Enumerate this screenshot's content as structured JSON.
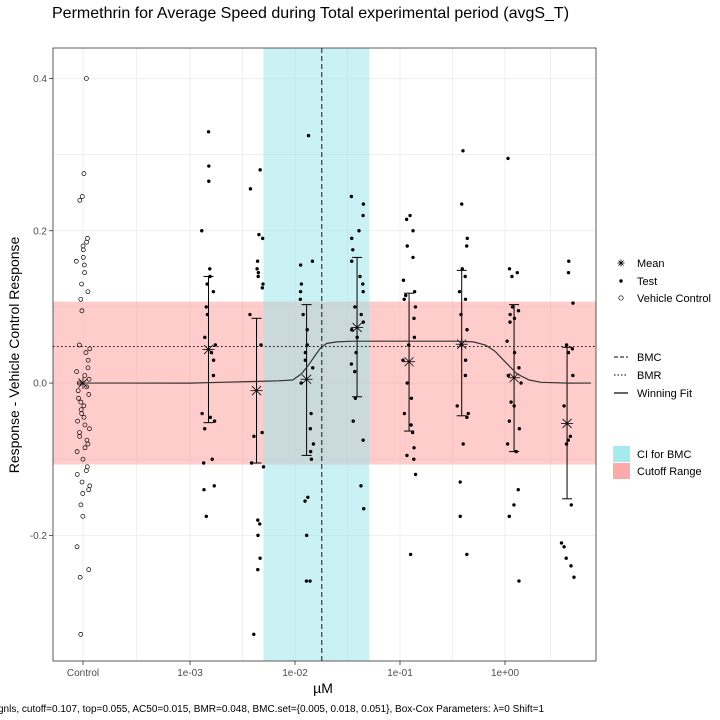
{
  "chart_data": {
    "type": "scatter",
    "title": "Permethrin for Average Speed during Total experimental period (avgS_T)",
    "xlabel": "µM",
    "ylabel": "Response - Vehicle Control Response",
    "caption": "gnls, cutoff=0.107, top=0.055, AC50=0.015, BMR=0.048, BMC.set={0.005, 0.018, 0.051}, Box-Cox Parameters: λ=0 Shift=1",
    "x_scale": "log10",
    "control_label": "Control",
    "x_ticks": [
      {
        "label": "Control",
        "value": null
      },
      {
        "label": "1e-03",
        "value": 0.001
      },
      {
        "label": "1e-02",
        "value": 0.01
      },
      {
        "label": "1e-01",
        "value": 0.1
      },
      {
        "label": "1e+00",
        "value": 1
      }
    ],
    "y_ticks": [
      -0.2,
      0.0,
      0.2,
      0.4
    ],
    "y_tick_labels": [
      "-0.2",
      "0.0",
      "0.2",
      "0.4"
    ],
    "ylim": [
      -0.365,
      0.44
    ],
    "grid": true,
    "cutoff": 0.107,
    "bmr": 0.048,
    "bmc": 0.018,
    "bmc_ci": [
      0.005,
      0.051
    ],
    "top": 0.055,
    "ac50": 0.015,
    "vehicle_control": [
      0.4,
      0.275,
      0.245,
      0.24,
      0.19,
      0.185,
      0.18,
      0.175,
      0.165,
      0.16,
      0.155,
      0.145,
      0.13,
      0.12,
      0.11,
      0.095,
      0.05,
      0.045,
      0.04,
      0.03,
      0.02,
      0.015,
      0.01,
      0.005,
      0.0,
      -0.005,
      -0.01,
      -0.015,
      -0.02,
      -0.025,
      -0.03,
      -0.035,
      -0.04,
      -0.045,
      -0.05,
      -0.055,
      -0.06,
      -0.065,
      -0.07,
      -0.075,
      -0.08,
      -0.085,
      -0.09,
      -0.1,
      -0.11,
      -0.115,
      -0.12,
      -0.13,
      -0.135,
      -0.14,
      -0.145,
      -0.16,
      -0.175,
      -0.215,
      -0.245,
      -0.255,
      -0.33
    ],
    "concentrations": [
      {
        "conc": 0.0015,
        "mean": 0.044,
        "err_low": -0.052,
        "err_high": 0.14,
        "points": [
          0.33,
          0.285,
          0.265,
          0.2,
          0.15,
          0.14,
          0.13,
          0.12,
          0.1,
          0.09,
          0.06,
          0.05,
          0.04,
          0.03,
          0.01,
          -0.04,
          -0.045,
          -0.05,
          -0.06,
          -0.1,
          -0.105,
          -0.135,
          -0.14,
          -0.175
        ]
      },
      {
        "conc": 0.0043,
        "mean": -0.01,
        "err_low": -0.105,
        "err_high": 0.085,
        "points": [
          0.28,
          0.255,
          0.195,
          0.19,
          0.16,
          0.15,
          0.145,
          0.14,
          0.13,
          0.125,
          0.09,
          0.05,
          -0.065,
          -0.07,
          -0.105,
          -0.11,
          -0.18,
          -0.185,
          -0.2,
          -0.23,
          -0.245,
          -0.33
        ]
      },
      {
        "conc": 0.0129,
        "mean": 0.005,
        "err_low": -0.095,
        "err_high": 0.103,
        "points": [
          0.325,
          0.16,
          0.155,
          0.13,
          0.12,
          0.11,
          0.09,
          0.07,
          0.05,
          0.04,
          0.03,
          0.02,
          0.0,
          -0.04,
          -0.06,
          -0.08,
          -0.09,
          -0.1,
          -0.15,
          -0.155,
          -0.2,
          -0.26,
          -0.26
        ]
      },
      {
        "conc": 0.039,
        "mean": 0.073,
        "err_low": -0.018,
        "err_high": 0.165,
        "points": [
          0.245,
          0.235,
          0.22,
          0.2,
          0.19,
          0.175,
          0.16,
          0.14,
          0.13,
          0.12,
          0.1,
          0.09,
          0.08,
          0.07,
          0.06,
          0.04,
          0.025,
          0.015,
          -0.02,
          -0.05,
          -0.075,
          -0.135,
          -0.165
        ]
      },
      {
        "conc": 0.122,
        "mean": 0.028,
        "err_low": -0.063,
        "err_high": 0.118,
        "points": [
          0.22,
          0.215,
          0.2,
          0.18,
          0.165,
          0.135,
          0.12,
          0.115,
          0.11,
          0.1,
          0.085,
          0.06,
          0.05,
          0.03,
          0.0,
          -0.02,
          -0.04,
          -0.055,
          -0.065,
          -0.085,
          -0.095,
          -0.1,
          -0.12,
          -0.225
        ]
      },
      {
        "conc": 0.387,
        "mean": 0.051,
        "err_low": -0.043,
        "err_high": 0.148,
        "points": [
          0.305,
          0.235,
          0.19,
          0.18,
          0.15,
          0.14,
          0.12,
          0.11,
          0.09,
          0.07,
          0.05,
          0.03,
          0.01,
          -0.03,
          -0.04,
          -0.045,
          -0.08,
          -0.13,
          -0.175,
          -0.225
        ]
      },
      {
        "conc": 1.22,
        "mean": 0.007,
        "err_low": -0.09,
        "err_high": 0.103,
        "points": [
          0.295,
          0.15,
          0.145,
          0.14,
          0.1,
          0.095,
          0.09,
          0.085,
          0.08,
          0.055,
          0.04,
          0.02,
          0.01,
          0.0,
          -0.025,
          -0.03,
          -0.05,
          -0.06,
          -0.08,
          -0.09,
          -0.14,
          -0.16,
          -0.175,
          -0.26
        ]
      },
      {
        "conc": 3.9,
        "mean": -0.053,
        "err_low": -0.152,
        "err_high": 0.047,
        "points": [
          0.16,
          0.145,
          0.105,
          0.05,
          0.045,
          0.04,
          0.01,
          -0.03,
          -0.07,
          -0.075,
          -0.08,
          -0.16,
          -0.21,
          -0.215,
          -0.23,
          -0.24,
          -0.255
        ]
      }
    ],
    "winning_fit": {
      "type": "hill-loss",
      "x": [
        0.001,
        0.002,
        0.004,
        0.007,
        0.0095,
        0.0115,
        0.0135,
        0.0155,
        0.0175,
        0.02,
        0.025,
        0.035,
        0.05,
        0.1,
        0.2,
        0.35,
        0.5,
        0.65,
        0.8,
        1.0,
        1.3,
        1.7,
        2.2,
        4.0
      ],
      "y": [
        0.0,
        0.001,
        0.002,
        0.003,
        0.004,
        0.012,
        0.024,
        0.036,
        0.046,
        0.052,
        0.054,
        0.055,
        0.055,
        0.055,
        0.055,
        0.055,
        0.054,
        0.05,
        0.042,
        0.028,
        0.012,
        0.004,
        0.001,
        0.0
      ]
    },
    "legend": {
      "markers": [
        "Mean",
        "Test",
        "Vehicle Control"
      ],
      "lines": [
        "BMC",
        "BMR",
        "Winning Fit"
      ],
      "fills": [
        "CI for BMC",
        "Cutoff Range"
      ]
    },
    "colors": {
      "ci_fill": "#95e6ea",
      "cutoff_fill": "#ff9a9a",
      "points": "#000000",
      "fit": "#333333"
    }
  }
}
